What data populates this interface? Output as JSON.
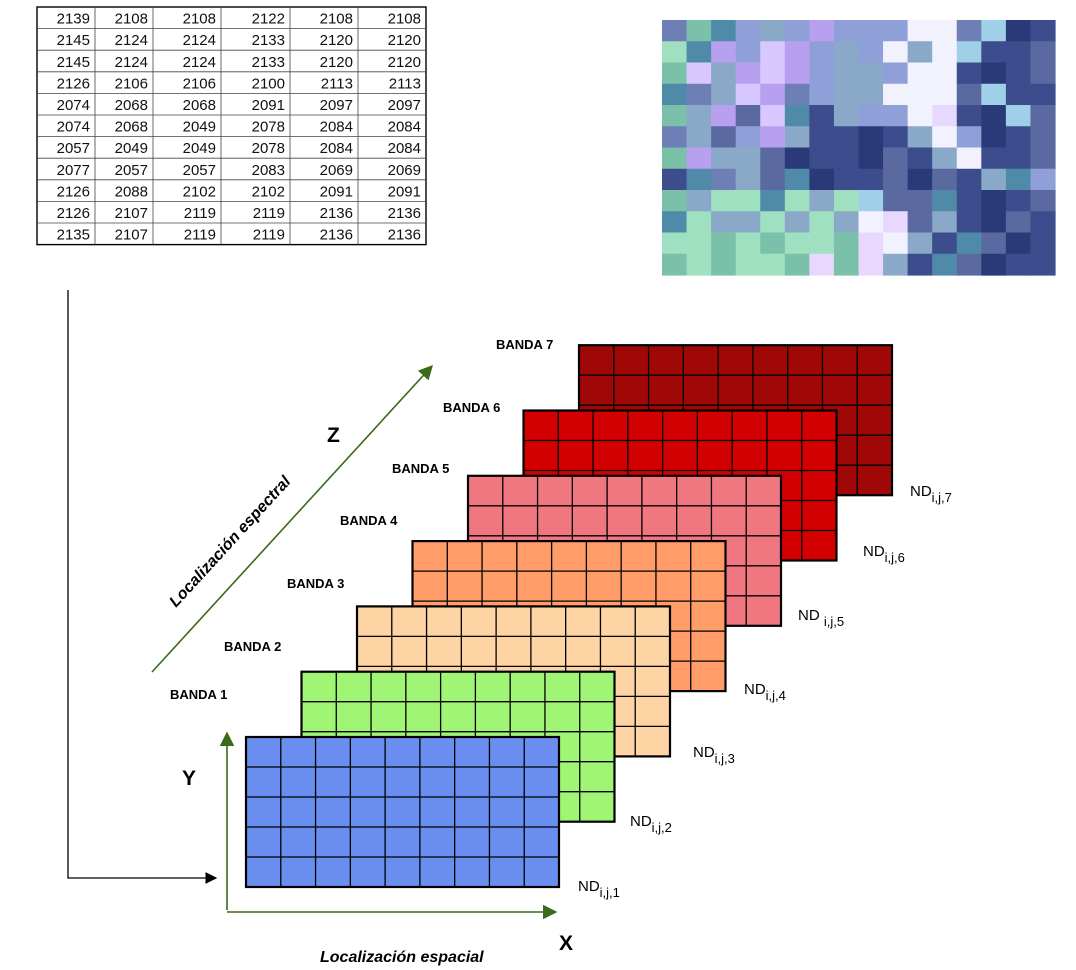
{
  "table": {
    "rows": [
      [
        "2139",
        "2108",
        "2108",
        "2122",
        "2108",
        "2108"
      ],
      [
        "2145",
        "2124",
        "2124",
        "2133",
        "2120",
        "2120"
      ],
      [
        "2145",
        "2124",
        "2124",
        "2133",
        "2120",
        "2120"
      ],
      [
        "2126",
        "2106",
        "2106",
        "2100",
        "2113",
        "2113"
      ],
      [
        "2074",
        "2068",
        "2068",
        "2091",
        "2097",
        "2097"
      ],
      [
        "2074",
        "2068",
        "2049",
        "2078",
        "2084",
        "2084"
      ],
      [
        "2057",
        "2049",
        "2049",
        "2078",
        "2084",
        "2084"
      ],
      [
        "2077",
        "2057",
        "2057",
        "2083",
        "2069",
        "2069"
      ],
      [
        "2126",
        "2088",
        "2102",
        "2102",
        "2091",
        "2091"
      ],
      [
        "2126",
        "2107",
        "2119",
        "2119",
        "2136",
        "2136"
      ],
      [
        "2135",
        "2107",
        "2119",
        "2119",
        "2136",
        "2136"
      ]
    ]
  },
  "pixel_image": {
    "palette": [
      "#6e7fb5",
      "#8fa0d8",
      "#5a6aa0",
      "#7bc0a8",
      "#9ee0c0",
      "#3c4c8c",
      "#b8a0f0",
      "#d8c8ff",
      "#f2f2ff",
      "#2a3a78",
      "#4f8aa8",
      "#8aa8c8",
      "#e8d8ff",
      "#a0d0e8"
    ],
    "grid": [
      "03A1B16111880D95",
      "4A61761B18B8D552",
      "37B6761BB1885952",
      "A0B7601BB8882D55",
      "3B627A5B118C59D2",
      "0B216B5595B81952",
      "36BB2955925B8552",
      "5A0B2A9552925BA1",
      "3B44A4B4D22A5952",
      "A4BB4B4B8C2B5925",
      "44343443C8B5A295",
      "343443C3CB5A2955"
    ]
  },
  "bands": [
    {
      "label": "BANDA 1",
      "nd_main": "ND",
      "nd_sub": "i,j,1",
      "color": "#6a8df0"
    },
    {
      "label": "BANDA 2",
      "nd_main": "ND",
      "nd_sub": "i,j,2",
      "color": "#a0f575"
    },
    {
      "label": "BANDA 3",
      "nd_main": "ND",
      "nd_sub": "i,j,3",
      "color": "#ffd4a4"
    },
    {
      "label": "BANDA 4",
      "nd_main": "ND",
      "nd_sub": "i,j,4",
      "color": "#ff9c68"
    },
    {
      "label": "BANDA 5",
      "nd_main": "ND ",
      "nd_sub": "i,j,5",
      "color": "#f07780"
    },
    {
      "label": "BANDA 6",
      "nd_main": "ND",
      "nd_sub": "i,j,6",
      "color": "#d20000"
    },
    {
      "label": "BANDA 7",
      "nd_main": "ND",
      "nd_sub": "i,j,7",
      "color": "#a00808"
    }
  ],
  "axes": {
    "y_letter": "Y",
    "x_letter": "X",
    "z_letter": "Z",
    "spatial_caption": "Localización espacial",
    "spectral_caption": "Localización espectral",
    "axis_color": "#3a6a1a"
  }
}
